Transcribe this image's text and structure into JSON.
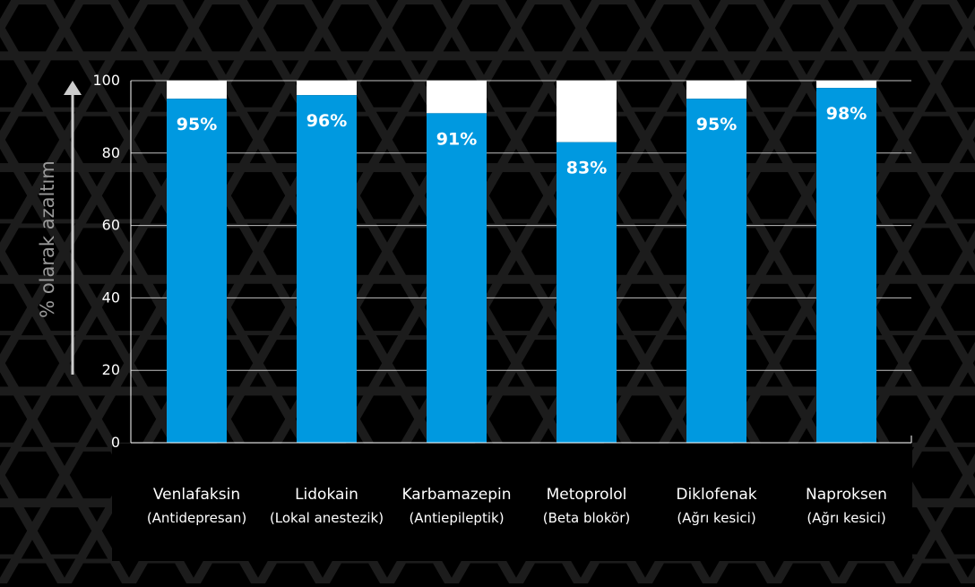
{
  "chart_data": {
    "type": "bar",
    "stacked_to_total": 100,
    "ylabel": "% olarak azaltım",
    "ylim": [
      0,
      100
    ],
    "yticks": [
      0,
      20,
      40,
      60,
      80,
      100
    ],
    "ytick_labels": [
      "0",
      "20",
      "40",
      "60",
      "80",
      "100"
    ],
    "categories": [
      {
        "name": "Venlafaksin",
        "sub": "(Antidepresan)",
        "value": 95,
        "label": "95%"
      },
      {
        "name": "Lidokain",
        "sub": "(Lokal anestezik)",
        "value": 96,
        "label": "96%"
      },
      {
        "name": "Karbamazepin",
        "sub": "(Antiepileptik)",
        "value": 91,
        "label": "91%"
      },
      {
        "name": "Metoprolol",
        "sub": "(Beta blokör)",
        "value": 83,
        "label": "83%"
      },
      {
        "name": "Diklofenak",
        "sub": "(Ağrı kesici)",
        "value": 95,
        "label": "95%"
      },
      {
        "name": "Naproksen",
        "sub": "(Ağrı kesici)",
        "value": 98,
        "label": "98%"
      }
    ],
    "grid": true,
    "colors": {
      "bar": "#0099e0",
      "remainder": "#ffffff",
      "background": "#000000",
      "hexagon": "#1c1c1c",
      "grid": "#ffffff",
      "text": "#ffffff",
      "ylabel": "#9a9a9a",
      "arrow": "#cccccc"
    }
  }
}
